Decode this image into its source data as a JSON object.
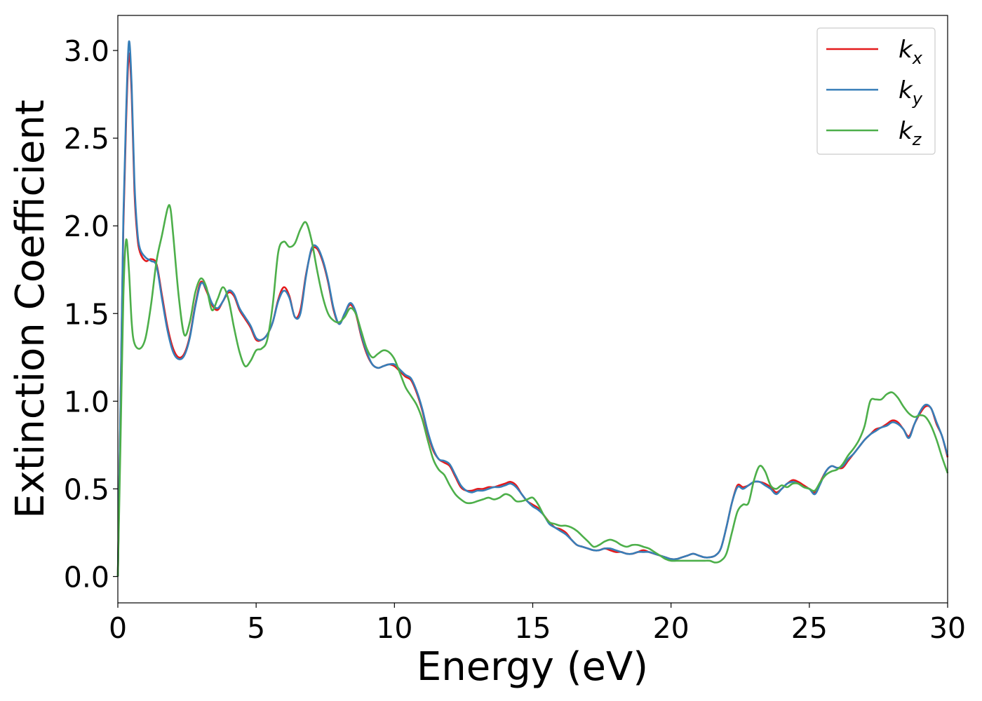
{
  "chart_data": {
    "type": "line",
    "xlabel": "Energy (eV)",
    "ylabel": "Extinction Coefficient",
    "xlim": [
      0,
      30
    ],
    "ylim": [
      -0.15,
      3.2
    ],
    "xticks": [
      0,
      5,
      10,
      15,
      20,
      25,
      30
    ],
    "xtick_labels": [
      "0",
      "5",
      "10",
      "15",
      "20",
      "25",
      "30"
    ],
    "yticks": [
      0.0,
      0.5,
      1.0,
      1.5,
      2.0,
      2.5,
      3.0
    ],
    "ytick_labels": [
      "0.0",
      "0.5",
      "1.0",
      "1.5",
      "2.0",
      "2.5",
      "3.0"
    ],
    "grid": false,
    "legend_position": "top-right",
    "series": [
      {
        "name": "k",
        "subscript": "x",
        "color": "#e41a1c",
        "x": [
          0,
          0.1,
          0.2,
          0.3,
          0.4,
          0.5,
          0.6,
          0.7,
          0.8,
          1.0,
          1.2,
          1.4,
          1.6,
          1.8,
          2.0,
          2.2,
          2.4,
          2.6,
          2.8,
          3.0,
          3.2,
          3.4,
          3.6,
          3.8,
          4.0,
          4.2,
          4.4,
          4.6,
          4.8,
          5.0,
          5.2,
          5.4,
          5.6,
          5.8,
          6.0,
          6.2,
          6.4,
          6.6,
          6.8,
          7.0,
          7.2,
          7.4,
          7.6,
          7.8,
          8.0,
          8.2,
          8.4,
          8.6,
          8.8,
          9.0,
          9.2,
          9.4,
          9.6,
          9.8,
          10.0,
          10.2,
          10.4,
          10.6,
          10.8,
          11.0,
          11.2,
          11.4,
          11.6,
          11.8,
          12.0,
          12.2,
          12.4,
          12.6,
          12.8,
          13.0,
          13.2,
          13.4,
          13.6,
          13.8,
          14.0,
          14.2,
          14.4,
          14.6,
          14.8,
          15.0,
          15.2,
          15.4,
          15.6,
          15.8,
          16.0,
          16.2,
          16.4,
          16.6,
          16.8,
          17.0,
          17.2,
          17.4,
          17.6,
          17.8,
          18.0,
          18.2,
          18.4,
          18.6,
          18.8,
          19.0,
          19.2,
          19.4,
          19.6,
          19.8,
          20.0,
          20.2,
          20.4,
          20.6,
          20.8,
          21.0,
          21.2,
          21.4,
          21.6,
          21.8,
          22.0,
          22.2,
          22.4,
          22.6,
          22.8,
          23.0,
          23.2,
          23.4,
          23.6,
          23.8,
          24.0,
          24.2,
          24.4,
          24.6,
          24.8,
          25.0,
          25.2,
          25.4,
          25.6,
          25.8,
          26.0,
          26.2,
          26.4,
          26.6,
          26.8,
          27.0,
          27.2,
          27.4,
          27.6,
          27.8,
          28.0,
          28.2,
          28.4,
          28.6,
          28.8,
          29.0,
          29.2,
          29.4,
          29.6,
          29.8,
          30.0
        ],
        "y": [
          0.0,
          1.0,
          2.0,
          2.6,
          2.98,
          2.75,
          2.2,
          1.95,
          1.85,
          1.8,
          1.81,
          1.78,
          1.6,
          1.42,
          1.3,
          1.25,
          1.27,
          1.37,
          1.55,
          1.68,
          1.63,
          1.55,
          1.52,
          1.57,
          1.62,
          1.6,
          1.52,
          1.47,
          1.42,
          1.35,
          1.35,
          1.38,
          1.45,
          1.58,
          1.65,
          1.6,
          1.48,
          1.52,
          1.72,
          1.86,
          1.87,
          1.8,
          1.68,
          1.52,
          1.44,
          1.5,
          1.55,
          1.5,
          1.37,
          1.27,
          1.21,
          1.19,
          1.2,
          1.21,
          1.2,
          1.17,
          1.14,
          1.12,
          1.05,
          0.95,
          0.82,
          0.72,
          0.67,
          0.65,
          0.63,
          0.57,
          0.51,
          0.49,
          0.49,
          0.5,
          0.5,
          0.51,
          0.51,
          0.52,
          0.53,
          0.54,
          0.52,
          0.47,
          0.43,
          0.41,
          0.39,
          0.35,
          0.31,
          0.28,
          0.27,
          0.25,
          0.21,
          0.18,
          0.17,
          0.16,
          0.15,
          0.15,
          0.16,
          0.15,
          0.14,
          0.14,
          0.13,
          0.13,
          0.14,
          0.15,
          0.14,
          0.13,
          0.12,
          0.11,
          0.1,
          0.1,
          0.11,
          0.12,
          0.13,
          0.12,
          0.11,
          0.11,
          0.12,
          0.16,
          0.28,
          0.42,
          0.52,
          0.51,
          0.52,
          0.54,
          0.54,
          0.53,
          0.51,
          0.48,
          0.5,
          0.53,
          0.55,
          0.54,
          0.52,
          0.5,
          0.48,
          0.54,
          0.6,
          0.63,
          0.62,
          0.62,
          0.66,
          0.7,
          0.74,
          0.78,
          0.81,
          0.84,
          0.85,
          0.87,
          0.89,
          0.88,
          0.84,
          0.8,
          0.87,
          0.93,
          0.97,
          0.96,
          0.87,
          0.8,
          0.68
        ]
      },
      {
        "name": "k",
        "subscript": "y",
        "color": "#377eb8",
        "x": [
          0,
          0.1,
          0.2,
          0.3,
          0.4,
          0.5,
          0.6,
          0.7,
          0.8,
          1.0,
          1.2,
          1.4,
          1.6,
          1.8,
          2.0,
          2.2,
          2.4,
          2.6,
          2.8,
          3.0,
          3.2,
          3.4,
          3.6,
          3.8,
          4.0,
          4.2,
          4.4,
          4.6,
          4.8,
          5.0,
          5.2,
          5.4,
          5.6,
          5.8,
          6.0,
          6.2,
          6.4,
          6.6,
          6.8,
          7.0,
          7.2,
          7.4,
          7.6,
          7.8,
          8.0,
          8.2,
          8.4,
          8.6,
          8.8,
          9.0,
          9.2,
          9.4,
          9.6,
          9.8,
          10.0,
          10.2,
          10.4,
          10.6,
          10.8,
          11.0,
          11.2,
          11.4,
          11.6,
          11.8,
          12.0,
          12.2,
          12.4,
          12.6,
          12.8,
          13.0,
          13.2,
          13.4,
          13.6,
          13.8,
          14.0,
          14.2,
          14.4,
          14.6,
          14.8,
          15.0,
          15.2,
          15.4,
          15.6,
          15.8,
          16.0,
          16.2,
          16.4,
          16.6,
          16.8,
          17.0,
          17.2,
          17.4,
          17.6,
          17.8,
          18.0,
          18.2,
          18.4,
          18.6,
          18.8,
          19.0,
          19.2,
          19.4,
          19.6,
          19.8,
          20.0,
          20.2,
          20.4,
          20.6,
          20.8,
          21.0,
          21.2,
          21.4,
          21.6,
          21.8,
          22.0,
          22.2,
          22.4,
          22.6,
          22.8,
          23.0,
          23.2,
          23.4,
          23.6,
          23.8,
          24.0,
          24.2,
          24.4,
          24.6,
          24.8,
          25.0,
          25.2,
          25.4,
          25.6,
          25.8,
          26.0,
          26.2,
          26.4,
          26.6,
          26.8,
          27.0,
          27.2,
          27.4,
          27.6,
          27.8,
          28.0,
          28.2,
          28.4,
          28.6,
          28.8,
          29.0,
          29.2,
          29.4,
          29.6,
          29.8,
          30.0
        ],
        "y": [
          0.0,
          1.02,
          2.05,
          2.65,
          3.05,
          2.8,
          2.25,
          1.98,
          1.87,
          1.82,
          1.8,
          1.77,
          1.58,
          1.4,
          1.28,
          1.24,
          1.26,
          1.36,
          1.54,
          1.67,
          1.64,
          1.56,
          1.53,
          1.57,
          1.63,
          1.61,
          1.53,
          1.48,
          1.43,
          1.36,
          1.35,
          1.38,
          1.45,
          1.57,
          1.63,
          1.59,
          1.48,
          1.5,
          1.71,
          1.87,
          1.88,
          1.81,
          1.69,
          1.53,
          1.44,
          1.5,
          1.56,
          1.51,
          1.38,
          1.28,
          1.21,
          1.19,
          1.2,
          1.21,
          1.21,
          1.18,
          1.15,
          1.13,
          1.06,
          0.96,
          0.83,
          0.73,
          0.67,
          0.66,
          0.64,
          0.58,
          0.52,
          0.49,
          0.48,
          0.49,
          0.49,
          0.5,
          0.51,
          0.51,
          0.52,
          0.53,
          0.51,
          0.47,
          0.43,
          0.4,
          0.38,
          0.35,
          0.3,
          0.28,
          0.26,
          0.24,
          0.21,
          0.18,
          0.17,
          0.16,
          0.15,
          0.15,
          0.16,
          0.16,
          0.15,
          0.14,
          0.13,
          0.13,
          0.14,
          0.14,
          0.14,
          0.13,
          0.12,
          0.11,
          0.1,
          0.1,
          0.11,
          0.12,
          0.13,
          0.12,
          0.11,
          0.11,
          0.12,
          0.16,
          0.28,
          0.42,
          0.51,
          0.5,
          0.52,
          0.54,
          0.54,
          0.52,
          0.5,
          0.47,
          0.5,
          0.53,
          0.54,
          0.53,
          0.51,
          0.5,
          0.47,
          0.53,
          0.6,
          0.63,
          0.62,
          0.63,
          0.67,
          0.7,
          0.74,
          0.78,
          0.81,
          0.83,
          0.85,
          0.86,
          0.88,
          0.87,
          0.84,
          0.79,
          0.87,
          0.94,
          0.98,
          0.96,
          0.88,
          0.8,
          0.69
        ]
      },
      {
        "name": "k",
        "subscript": "z",
        "color": "#4daf4a",
        "x": [
          0,
          0.1,
          0.2,
          0.3,
          0.4,
          0.5,
          0.6,
          0.8,
          1.0,
          1.2,
          1.4,
          1.6,
          1.8,
          1.9,
          2.0,
          2.2,
          2.4,
          2.6,
          2.8,
          3.0,
          3.2,
          3.4,
          3.6,
          3.8,
          4.0,
          4.2,
          4.4,
          4.6,
          4.8,
          5.0,
          5.2,
          5.4,
          5.6,
          5.8,
          6.0,
          6.2,
          6.4,
          6.6,
          6.8,
          7.0,
          7.2,
          7.4,
          7.6,
          7.8,
          8.0,
          8.2,
          8.4,
          8.6,
          8.8,
          9.0,
          9.2,
          9.4,
          9.6,
          9.8,
          10.0,
          10.2,
          10.4,
          10.6,
          10.8,
          11.0,
          11.2,
          11.4,
          11.6,
          11.8,
          12.0,
          12.2,
          12.4,
          12.6,
          12.8,
          13.0,
          13.2,
          13.4,
          13.6,
          13.8,
          14.0,
          14.2,
          14.4,
          14.6,
          14.8,
          15.0,
          15.2,
          15.4,
          15.6,
          15.8,
          16.0,
          16.2,
          16.4,
          16.6,
          16.8,
          17.0,
          17.2,
          17.4,
          17.6,
          17.8,
          18.0,
          18.2,
          18.4,
          18.6,
          18.8,
          19.0,
          19.2,
          19.4,
          19.6,
          19.8,
          20.0,
          20.2,
          20.4,
          20.6,
          20.8,
          21.0,
          21.2,
          21.4,
          21.6,
          21.8,
          22.0,
          22.2,
          22.4,
          22.6,
          22.8,
          23.0,
          23.2,
          23.4,
          23.6,
          23.8,
          24.0,
          24.2,
          24.4,
          24.6,
          24.8,
          25.0,
          25.2,
          25.4,
          25.6,
          25.8,
          26.0,
          26.2,
          26.4,
          26.6,
          26.8,
          27.0,
          27.2,
          27.4,
          27.6,
          27.8,
          28.0,
          28.2,
          28.4,
          28.6,
          28.8,
          29.0,
          29.2,
          29.4,
          29.6,
          29.8,
          30.0
        ],
        "y": [
          0.0,
          0.8,
          1.6,
          1.92,
          1.75,
          1.45,
          1.33,
          1.3,
          1.36,
          1.55,
          1.8,
          1.95,
          2.1,
          2.1,
          1.95,
          1.6,
          1.38,
          1.45,
          1.62,
          1.7,
          1.65,
          1.52,
          1.58,
          1.65,
          1.58,
          1.42,
          1.28,
          1.2,
          1.23,
          1.29,
          1.3,
          1.35,
          1.55,
          1.85,
          1.91,
          1.88,
          1.9,
          1.98,
          2.02,
          1.92,
          1.75,
          1.6,
          1.5,
          1.46,
          1.45,
          1.48,
          1.53,
          1.5,
          1.4,
          1.3,
          1.25,
          1.27,
          1.29,
          1.28,
          1.24,
          1.16,
          1.08,
          1.03,
          0.98,
          0.9,
          0.78,
          0.67,
          0.61,
          0.58,
          0.52,
          0.47,
          0.44,
          0.42,
          0.42,
          0.43,
          0.44,
          0.45,
          0.44,
          0.45,
          0.47,
          0.46,
          0.43,
          0.43,
          0.44,
          0.45,
          0.41,
          0.35,
          0.31,
          0.3,
          0.29,
          0.29,
          0.28,
          0.26,
          0.23,
          0.2,
          0.17,
          0.18,
          0.2,
          0.21,
          0.2,
          0.18,
          0.17,
          0.18,
          0.18,
          0.17,
          0.16,
          0.14,
          0.12,
          0.1,
          0.09,
          0.09,
          0.09,
          0.09,
          0.09,
          0.09,
          0.09,
          0.09,
          0.08,
          0.09,
          0.13,
          0.25,
          0.37,
          0.41,
          0.42,
          0.55,
          0.63,
          0.6,
          0.52,
          0.5,
          0.52,
          0.51,
          0.53,
          0.53,
          0.51,
          0.5,
          0.49,
          0.54,
          0.58,
          0.6,
          0.61,
          0.64,
          0.69,
          0.73,
          0.78,
          0.86,
          1.0,
          1.01,
          1.01,
          1.04,
          1.05,
          1.02,
          0.97,
          0.93,
          0.91,
          0.92,
          0.91,
          0.86,
          0.78,
          0.68,
          0.59
        ]
      }
    ]
  }
}
